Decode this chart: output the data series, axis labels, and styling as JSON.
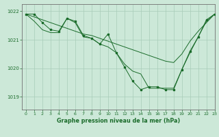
{
  "title": "Graphe pression niveau de la mer (hPa)",
  "background_color": "#cce8d8",
  "grid_color": "#a8ccb8",
  "line_color": "#1a6b2a",
  "xlim": [
    -0.5,
    23
  ],
  "ylim": [
    1018.55,
    1022.25
  ],
  "yticks": [
    1019,
    1020,
    1021,
    1022
  ],
  "xticks": [
    0,
    1,
    2,
    3,
    4,
    5,
    6,
    7,
    8,
    9,
    10,
    11,
    12,
    13,
    14,
    15,
    16,
    17,
    18,
    19,
    20,
    21,
    22,
    23
  ],
  "series_main": [
    1021.9,
    1021.9,
    1021.6,
    1021.35,
    1021.3,
    1021.75,
    1021.65,
    1021.15,
    1021.05,
    1020.85,
    1021.2,
    1020.55,
    1020.05,
    1019.55,
    1019.25,
    1019.35,
    1019.35,
    1019.25,
    1019.25,
    1019.95,
    1020.6,
    1021.1,
    1021.7,
    1021.9
  ],
  "series_trend": [
    1021.9,
    1021.8,
    1021.7,
    1021.6,
    1021.5,
    1021.4,
    1021.3,
    1021.2,
    1021.15,
    1021.05,
    1020.95,
    1020.85,
    1020.75,
    1020.65,
    1020.55,
    1020.45,
    1020.35,
    1020.25,
    1020.2,
    1020.5,
    1020.95,
    1021.3,
    1021.6,
    1021.9
  ],
  "series_extra": [
    1021.9,
    1021.65,
    1021.35,
    1021.25,
    1021.25,
    1021.75,
    1021.6,
    1021.1,
    1021.05,
    1020.85,
    1020.75,
    1020.55,
    1020.15,
    1019.9,
    1019.8,
    1019.3,
    1019.3,
    1019.3,
    1019.3,
    1019.95,
    1020.55,
    1021.1,
    1021.65,
    1021.9
  ],
  "figwidth": 3.2,
  "figheight": 2.0,
  "dpi": 100
}
